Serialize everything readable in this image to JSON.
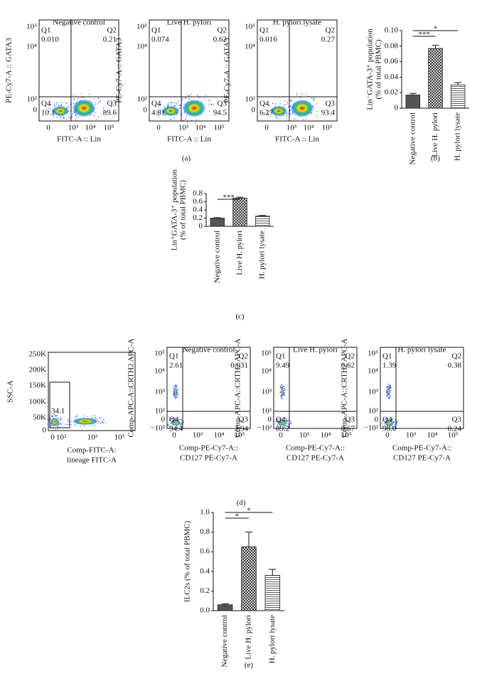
{
  "panel_a": {
    "ylabel": "PE-Cy7-A :: GATA3",
    "xlabel": "FITC-A :: Lin",
    "yticks": [
      "10⁵",
      "10⁴",
      "10²",
      "0"
    ],
    "xticks": [
      "0",
      "10³",
      "10⁴",
      "10⁵"
    ],
    "plots": [
      {
        "title": "Negative control",
        "quadrants": [
          {
            "name": "Q1",
            "value": "0.010"
          },
          {
            "name": "Q2",
            "value": "0.21"
          },
          {
            "name": "Q3",
            "value": "89.6"
          },
          {
            "name": "Q4",
            "value": "10.1"
          }
        ]
      },
      {
        "title": "Live H. pylori",
        "quadrants": [
          {
            "name": "Q1",
            "value": "0.074"
          },
          {
            "name": "Q2",
            "value": "0.62"
          },
          {
            "name": "Q3",
            "value": "94.5"
          },
          {
            "name": "Q4",
            "value": "4.81"
          }
        ]
      },
      {
        "title": "H. pylori lysate",
        "quadrants": [
          {
            "name": "Q1",
            "value": "0.016"
          },
          {
            "name": "Q2",
            "value": "0.27"
          },
          {
            "name": "Q3",
            "value": "93.4"
          },
          {
            "name": "Q4",
            "value": "6.27"
          }
        ]
      }
    ],
    "label": "(a)"
  },
  "panel_d": {
    "gate_plot": {
      "ylabel": "SSC-A",
      "xlabel": [
        "Comp-FITC-A:",
        "lineage FITC-A"
      ],
      "yticks": [
        "250K",
        "200K",
        "150K",
        "100K",
        "50K",
        "0"
      ],
      "xticks": [
        "0",
        "10²",
        "10³",
        "10⁵"
      ],
      "gate_value": "34.1"
    },
    "ylabel": "Comp-APC-A::CRTH2 APC-A",
    "xlabel": [
      "Comp-PE-Cy7-A::",
      "CD127 PE-Cy7-A"
    ],
    "yticks": [
      "10⁵",
      "10⁴",
      "10³",
      "10²",
      "0",
      "−10²"
    ],
    "xticks": [
      "0",
      "10³",
      "10⁴",
      "10⁵"
    ],
    "plots": [
      {
        "title": "Negative control",
        "quadrants": [
          {
            "name": "Q1",
            "value": "2.61"
          },
          {
            "name": "Q2",
            "value": "0.031"
          },
          {
            "name": "Q3",
            "value": "2.94"
          },
          {
            "name": "Q4",
            "value": "94.4"
          }
        ]
      },
      {
        "title": "Live H. pylori",
        "quadrants": [
          {
            "name": "Q1",
            "value": "9.49"
          },
          {
            "name": "Q2",
            "value": "0.62"
          },
          {
            "name": "Q3",
            "value": "0.67"
          },
          {
            "name": "Q4",
            "value": "89.2"
          }
        ]
      },
      {
        "title": "H. pylori lysate",
        "quadrants": [
          {
            "name": "Q1",
            "value": "1.39"
          },
          {
            "name": "Q2",
            "value": "0.38"
          },
          {
            "name": "Q3",
            "value": "0.24"
          },
          {
            "name": "Q4",
            "value": "98.0"
          }
        ]
      }
    ],
    "label": "(d)"
  },
  "chart_data": [
    {
      "type": "bar",
      "label": "(b)",
      "ylabel": [
        "Lin⁻GATA-3⁺ population",
        "(% of total PBMC)"
      ],
      "categories": [
        "Negative control",
        "Live H. pylori",
        "H. pylori lysate"
      ],
      "values": [
        0.017,
        0.077,
        0.03
      ],
      "errors": [
        0.002,
        0.004,
        0.003
      ],
      "fills": [
        "solid",
        "crosshatch",
        "hlines"
      ],
      "ylim": [
        0,
        0.1
      ],
      "yticks": [
        0,
        0.02,
        0.04,
        0.06,
        0.08,
        {
          "value": 0.1,
          "label": "0.10"
        }
      ],
      "significance": [
        {
          "label": "***",
          "from": 0,
          "to": 1
        },
        {
          "label": "*",
          "from": 0,
          "to": 2
        }
      ]
    },
    {
      "type": "bar",
      "label": "(c)",
      "ylabel": [
        "Lin⁺GATA-3⁺ population",
        "(% of total PBMC)"
      ],
      "categories": [
        "Negative control",
        "Live H. pylori",
        "H. pylori lysate"
      ],
      "values": [
        0.2,
        0.69,
        0.25
      ],
      "errors": [
        0.01,
        0.02,
        0.015
      ],
      "fills": [
        "solid",
        "crosshatch",
        "hlines"
      ],
      "ylim": [
        0,
        0.8
      ],
      "yticks": [
        0,
        0.2,
        0.4,
        0.6,
        0.8
      ],
      "significance": [
        {
          "label": "***",
          "from": 0,
          "to": 1
        }
      ]
    },
    {
      "type": "bar",
      "label": "(e)",
      "ylabel": [
        "ILC2s (% of total PBMC)"
      ],
      "categories": [
        "Negative control",
        "Live H. pylori",
        "H. pylori lysate"
      ],
      "values": [
        0.06,
        0.65,
        0.36
      ],
      "errors": [
        0.01,
        0.15,
        0.06
      ],
      "fills": [
        "solid",
        "crosshatch",
        "hlines"
      ],
      "ylim": [
        0,
        1
      ],
      "yticks": [
        {
          "value": 0,
          "label": "0.0"
        },
        0.2,
        0.4,
        0.6,
        0.8,
        {
          "value": 1,
          "label": "1.0"
        }
      ],
      "significance": [
        {
          "label": "*",
          "from": 0,
          "to": 1
        },
        {
          "label": "*",
          "from": 0,
          "to": 2
        }
      ]
    }
  ]
}
